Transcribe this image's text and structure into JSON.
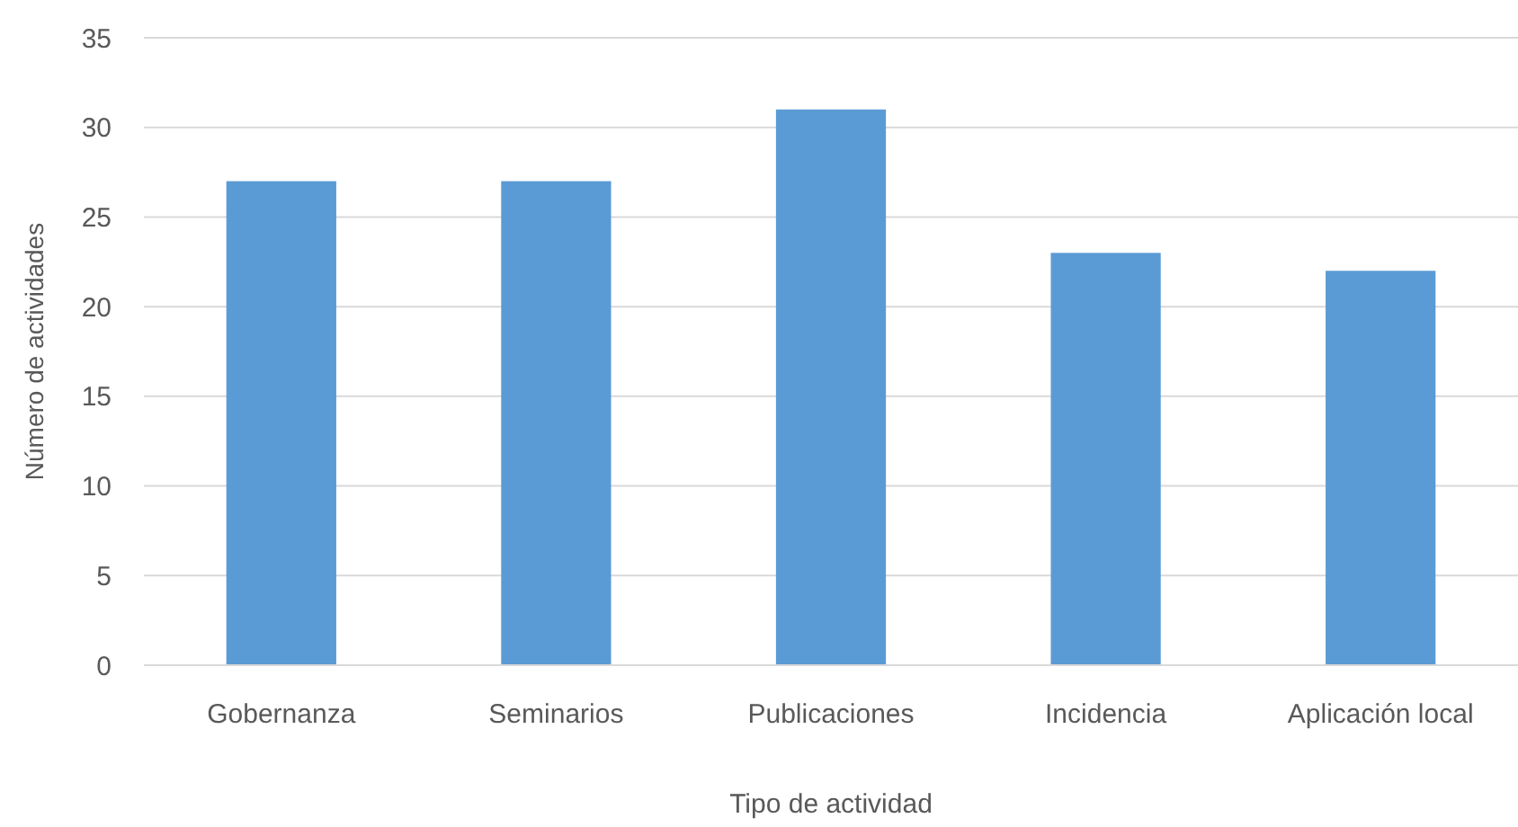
{
  "chart_data": {
    "type": "bar",
    "xlabel": "Tipo de actividad",
    "ylabel": "Número de actividades",
    "categories": [
      "Gobernanza",
      "Seminarios",
      "Publicaciones",
      "Incidencia",
      "Aplicación local"
    ],
    "values": [
      27,
      27,
      31,
      23,
      22
    ],
    "color": "#5b9bd5",
    "ylim": [
      0,
      35
    ],
    "yticks": [
      0,
      5,
      10,
      15,
      20,
      25,
      30,
      35
    ],
    "grid": "y"
  }
}
